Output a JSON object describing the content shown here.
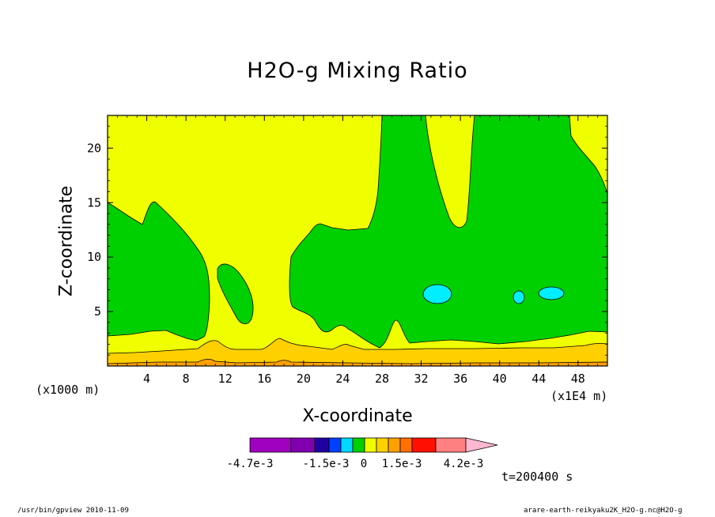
{
  "chart_data": {
    "type": "contour",
    "title": "H2O-g Mixing Ratio",
    "xlabel": "X-coordinate",
    "ylabel": "Z-coordinate",
    "x_unit": "(x1E4 m)",
    "y_unit": "(x1000 m)",
    "xlim": [
      0,
      51
    ],
    "ylim": [
      0,
      23
    ],
    "xticks": [
      4,
      8,
      12,
      16,
      20,
      24,
      28,
      32,
      36,
      40,
      44,
      48
    ],
    "yticks": [
      5,
      10,
      15,
      20
    ],
    "time_label": "t=200400 s",
    "colorbar": {
      "colors": [
        "#a000c0",
        "#8000b0",
        "#2000a0",
        "#0040ff",
        "#00d8ff",
        "#00d000",
        "#f0ff00",
        "#ffd000",
        "#ffa000",
        "#ff7000",
        "#ff1000",
        "#ff8080",
        "#ffb8d0"
      ],
      "labels": [
        "-4.7e-3",
        "-1.5e-3",
        "0",
        "1.5e-3",
        "4.2e-3"
      ]
    },
    "region_colors": {
      "yellow": "#f0ff00",
      "green": "#00d000",
      "cyan": "#00eeff",
      "light_orange": "#ffd000",
      "orange": "#ffa000"
    }
  },
  "footer": {
    "left": "/usr/bin/gpview  2010-11-09",
    "right": "arare-earth-reikyaku2K_H2O-g.nc@H2O-g"
  }
}
